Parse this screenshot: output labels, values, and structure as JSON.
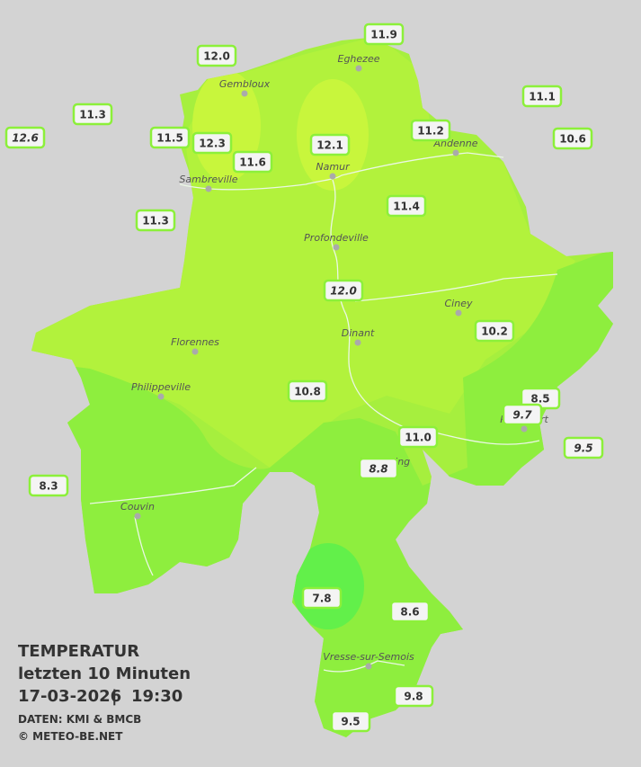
{
  "legend": {
    "title": "TEMPERATUR",
    "subtitle": "letzten 10 Minuten",
    "date": "17-03-2026",
    "separator": "|",
    "time": "19:30",
    "source": "DATEN: KMI & BMCB",
    "copyright": "© METEO-BE.NET"
  },
  "towns": [
    {
      "name": "Eghezee"
    },
    {
      "name": "Gembloux"
    },
    {
      "name": "Andenne"
    },
    {
      "name": "Namur"
    },
    {
      "name": "Sambreville"
    },
    {
      "name": "Profondeville"
    },
    {
      "name": "Ciney"
    },
    {
      "name": "Dinant"
    },
    {
      "name": "Florennes"
    },
    {
      "name": "Philippeville"
    },
    {
      "name": "Beauraing"
    },
    {
      "name": "Rochefort"
    },
    {
      "name": "Couvin"
    },
    {
      "name": "Vresse-sur-Semois"
    }
  ],
  "stations": [
    {
      "label": "11.9",
      "italic": false
    },
    {
      "label": "12.0",
      "italic": false
    },
    {
      "label": "11.1",
      "italic": false
    },
    {
      "label": "11.3",
      "italic": false
    },
    {
      "label": "12.6",
      "italic": true
    },
    {
      "label": "11.5",
      "italic": false
    },
    {
      "label": "12.3",
      "italic": false
    },
    {
      "label": "12.1",
      "italic": false
    },
    {
      "label": "11.2",
      "italic": false
    },
    {
      "label": "10.6",
      "italic": false
    },
    {
      "label": "11.6",
      "italic": false
    },
    {
      "label": "11.4",
      "italic": false
    },
    {
      "label": "11.3",
      "italic": false
    },
    {
      "label": "12.0",
      "italic": true
    },
    {
      "label": "10.2",
      "italic": false
    },
    {
      "label": "10.8",
      "italic": false
    },
    {
      "label": "8.5",
      "italic": false
    },
    {
      "label": "9.7",
      "italic": true
    },
    {
      "label": "9.5",
      "italic": true
    },
    {
      "label": "11.0",
      "italic": false
    },
    {
      "label": "8.8",
      "italic": true
    },
    {
      "label": "8.3",
      "italic": false
    },
    {
      "label": "7.8",
      "italic": false
    },
    {
      "label": "8.6",
      "italic": false
    },
    {
      "label": "9.8",
      "italic": false
    },
    {
      "label": "9.5",
      "italic": false
    }
  ]
}
